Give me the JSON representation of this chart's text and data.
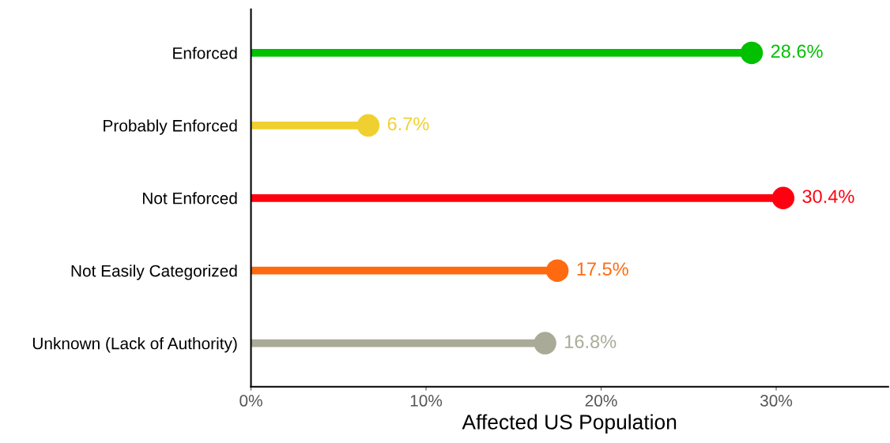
{
  "chart_data": {
    "type": "lollipop",
    "orientation": "horizontal",
    "categories": [
      "Enforced",
      "Probably Enforced",
      "Not Enforced",
      "Not Easily Categorized",
      "Unknown (Lack of Authority)"
    ],
    "values": [
      28.6,
      6.7,
      30.4,
      17.5,
      16.8
    ],
    "colors": [
      "#00c000",
      "#f0d030",
      "#ff0010",
      "#ff6a10",
      "#a9aa98"
    ],
    "value_labels": [
      "28.6%",
      "6.7%",
      "30.4%",
      "17.5%",
      "16.8%"
    ],
    "xlabel": "Affected US Population",
    "xlim": [
      0,
      36.4
    ],
    "xticks": [
      {
        "value": 0,
        "label": "0%"
      },
      {
        "value": 10,
        "label": "10%"
      },
      {
        "value": 20,
        "label": "20%"
      },
      {
        "value": 30,
        "label": "30%"
      }
    ]
  }
}
